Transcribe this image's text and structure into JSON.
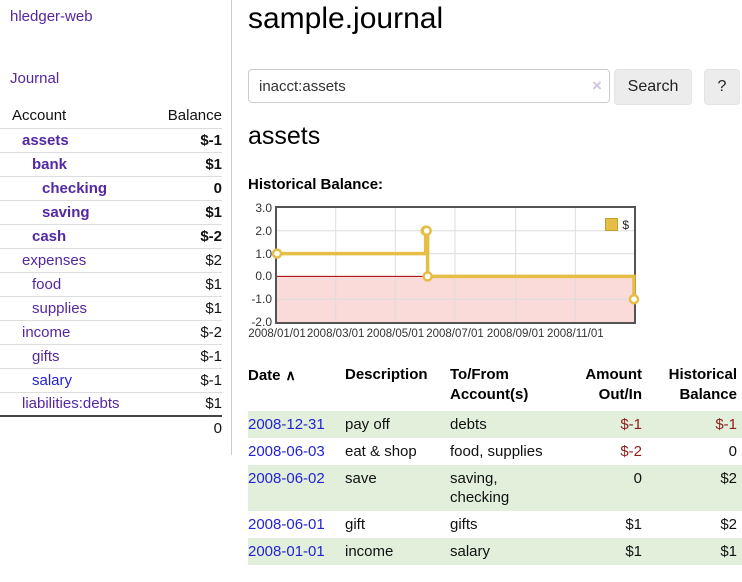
{
  "colors": {
    "link_purple": "#5427a3",
    "link_blue": "#2323d6",
    "negative_strong": "#8f1d1d",
    "negative_soft": "#b96f6f",
    "row_stripe_green": "#e2efdb",
    "button_gray": "#ececec"
  },
  "sidebar": {
    "app_title": "hledger-web",
    "journal_link": "Journal",
    "account_header": "Account",
    "balance_header": "Balance",
    "accounts": [
      {
        "name": "assets",
        "balance": "$-1"
      },
      {
        "name": "bank",
        "balance": "$1"
      },
      {
        "name": "checking",
        "balance": "0"
      },
      {
        "name": "saving",
        "balance": "$1"
      },
      {
        "name": "cash",
        "balance": "$-2"
      },
      {
        "name": "expenses",
        "balance": "$2"
      },
      {
        "name": "food",
        "balance": "$1"
      },
      {
        "name": "supplies",
        "balance": "$1"
      },
      {
        "name": "income",
        "balance": "$-2"
      },
      {
        "name": "gifts",
        "balance": "$-1"
      },
      {
        "name": "salary",
        "balance": "$-1"
      },
      {
        "name": "liabilities:debts",
        "balance": "$1"
      }
    ],
    "total": "0"
  },
  "header": {
    "title": "sample.journal"
  },
  "search": {
    "value": "inacct:assets",
    "clear_icon": "×",
    "search_button": "Search",
    "help_button": "?"
  },
  "account_page": {
    "heading": "assets",
    "chart_title": "Historical Balance:"
  },
  "chart_data": {
    "type": "line",
    "step": true,
    "title": "Historical Balance",
    "legend_label": "$",
    "legend_position": "top-right",
    "grid": true,
    "ylim": [
      -2,
      3
    ],
    "y_ticks": [
      3,
      2,
      1,
      0,
      -1,
      -2
    ],
    "x_min": "2008-01-01",
    "x_max": "2008-12-31",
    "x_ticks": [
      "2008-01-01",
      "2008-03-01",
      "2008-05-01",
      "2008-07-01",
      "2008-09-01",
      "2008-11-01"
    ],
    "x_tick_labels": [
      "2008/01/01",
      "2008/03/01",
      "2008/05/01",
      "2008/07/01",
      "2008/09/01",
      "2008/11/01"
    ],
    "series": [
      {
        "name": "$",
        "points": [
          {
            "x": "2008-01-01",
            "y": 1
          },
          {
            "x": "2008-06-01",
            "y": 2
          },
          {
            "x": "2008-06-02",
            "y": 2
          },
          {
            "x": "2008-06-03",
            "y": 0
          },
          {
            "x": "2008-12-31",
            "y": -1
          }
        ]
      }
    ],
    "colors": {
      "line": "#e6bd45",
      "marker_fill": "#ffffff",
      "grid": "#dddddd",
      "zero_line": "#a40000",
      "negative_region": "#fbdada",
      "border": "#545454"
    }
  },
  "register": {
    "headers": {
      "date": "Date",
      "sort_icon": "∧",
      "description": "Description",
      "accounts": "To/From Account(s)",
      "amount": "Amount Out/In",
      "balance": "Historical Balance"
    },
    "rows": [
      {
        "date": "2008-12-31",
        "description": "pay off",
        "accounts": "debts",
        "amount": "$-1",
        "balance": "$-1"
      },
      {
        "date": "2008-06-03",
        "description": "eat & shop",
        "accounts": "food, supplies",
        "amount": "$-2",
        "balance": "0"
      },
      {
        "date": "2008-06-02",
        "description": "save",
        "accounts": "saving, checking",
        "amount": "0",
        "balance": "$2"
      },
      {
        "date": "2008-06-01",
        "description": "gift",
        "accounts": "gifts",
        "amount": "$1",
        "balance": "$2"
      },
      {
        "date": "2008-01-01",
        "description": "income",
        "accounts": "salary",
        "amount": "$1",
        "balance": "$1"
      }
    ]
  }
}
